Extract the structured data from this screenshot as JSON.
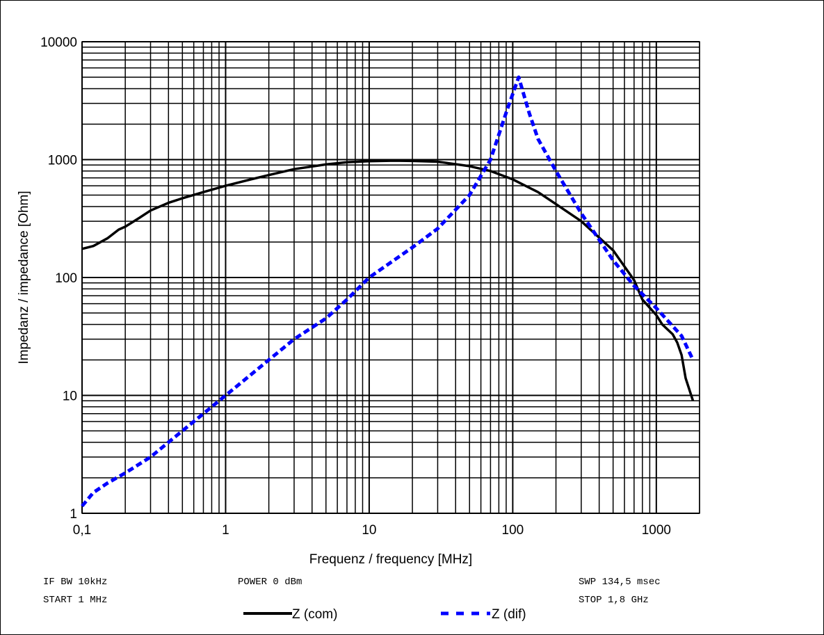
{
  "chart_data": {
    "type": "line",
    "xlabel": "Frequenz / frequency [MHz]",
    "ylabel": "Impedanz / impedance [Ohm]",
    "x_scale": "log",
    "y_scale": "log",
    "xlim": [
      0.1,
      2000
    ],
    "ylim": [
      1,
      10000
    ],
    "x_ticks": [
      {
        "value": 0.1,
        "label": "0,1"
      },
      {
        "value": 1,
        "label": "1"
      },
      {
        "value": 10,
        "label": "10"
      },
      {
        "value": 100,
        "label": "100"
      },
      {
        "value": 1000,
        "label": "1000"
      }
    ],
    "y_ticks": [
      {
        "value": 1,
        "label": "1"
      },
      {
        "value": 10,
        "label": "10"
      },
      {
        "value": 100,
        "label": "100"
      },
      {
        "value": 1000,
        "label": "1000"
      },
      {
        "value": 10000,
        "label": "10000"
      }
    ],
    "grid": true,
    "legend_position": "bottom",
    "series": [
      {
        "name": "Z (com)",
        "color": "#000000",
        "style": "solid",
        "points": [
          [
            0.1,
            175
          ],
          [
            0.12,
            185
          ],
          [
            0.15,
            215
          ],
          [
            0.18,
            255
          ],
          [
            0.2,
            270
          ],
          [
            0.25,
            320
          ],
          [
            0.3,
            370
          ],
          [
            0.4,
            430
          ],
          [
            0.5,
            470
          ],
          [
            0.7,
            530
          ],
          [
            1,
            600
          ],
          [
            1.5,
            680
          ],
          [
            2,
            740
          ],
          [
            3,
            830
          ],
          [
            5,
            910
          ],
          [
            7,
            950
          ],
          [
            10,
            970
          ],
          [
            15,
            980
          ],
          [
            20,
            975
          ],
          [
            30,
            960
          ],
          [
            50,
            880
          ],
          [
            70,
            800
          ],
          [
            100,
            680
          ],
          [
            150,
            530
          ],
          [
            200,
            420
          ],
          [
            300,
            300
          ],
          [
            500,
            170
          ],
          [
            700,
            95
          ],
          [
            800,
            65
          ],
          [
            1000,
            48
          ],
          [
            1100,
            40
          ],
          [
            1300,
            33
          ],
          [
            1400,
            28
          ],
          [
            1500,
            22
          ],
          [
            1600,
            14
          ],
          [
            1800,
            9
          ]
        ]
      },
      {
        "name": "Z (dif)",
        "color": "#0000ff",
        "style": "dashed",
        "points": [
          [
            0.1,
            1.15
          ],
          [
            0.12,
            1.5
          ],
          [
            0.15,
            1.8
          ],
          [
            0.2,
            2.2
          ],
          [
            0.3,
            3
          ],
          [
            0.5,
            5
          ],
          [
            0.7,
            7
          ],
          [
            1,
            10
          ],
          [
            2,
            20
          ],
          [
            3,
            30
          ],
          [
            5,
            45
          ],
          [
            7,
            65
          ],
          [
            10,
            100
          ],
          [
            20,
            180
          ],
          [
            30,
            260
          ],
          [
            50,
            500
          ],
          [
            70,
            1000
          ],
          [
            90,
            2500
          ],
          [
            110,
            5000
          ],
          [
            130,
            2500
          ],
          [
            150,
            1500
          ],
          [
            200,
            800
          ],
          [
            300,
            350
          ],
          [
            500,
            140
          ],
          [
            700,
            85
          ],
          [
            1000,
            55
          ],
          [
            1500,
            32
          ],
          [
            1800,
            20
          ]
        ]
      }
    ]
  },
  "info": {
    "if_bw": "IF BW 10kHz",
    "start": "START 1 MHz",
    "power": "POWER 0 dBm",
    "swp": "SWP 134,5 msec",
    "stop": "STOP 1,8 GHz"
  }
}
